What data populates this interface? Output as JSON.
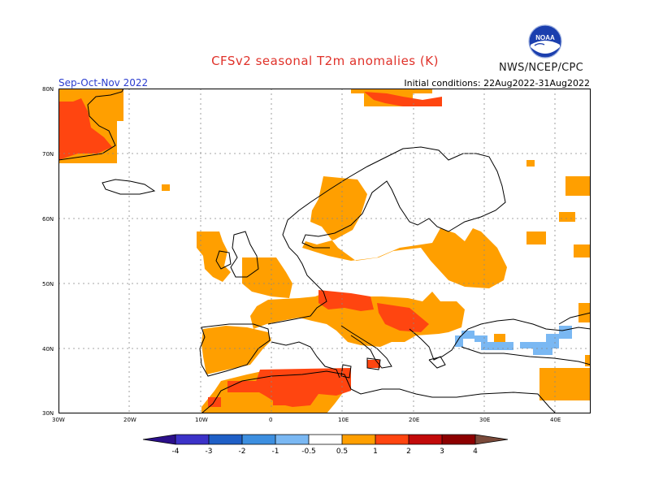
{
  "header": {
    "title": "CFSv2  seasonal  T2m  anomalies  (K)",
    "period": "Sep-Oct-Nov 2022",
    "initial_conditions": "Initial conditions: 22Aug2022-31Aug2022",
    "agency": "NWS/NCEP/CPC",
    "logo_text": "NOAA"
  },
  "map": {
    "lat_labels": [
      "80N",
      "70N",
      "60N",
      "50N",
      "40N",
      "30N"
    ],
    "lon_labels": [
      "30W",
      "20W",
      "10W",
      "0",
      "10E",
      "20E",
      "30E",
      "40E"
    ],
    "lon_range": [
      -30,
      45
    ],
    "lat_range": [
      30,
      80
    ]
  },
  "colorbar": {
    "labels": [
      "-4",
      "-3",
      "-2",
      "-1",
      "-0.5",
      "0.5",
      "1",
      "2",
      "3",
      "4"
    ],
    "colors": {
      "lt-4": "#2b0f8a",
      "-4to-3": "#3c32c8",
      "-3to-2": "#1f5fc6",
      "-2to-1": "#3d8fe0",
      "-1to-0.5": "#7ab8f3",
      "-0.5to0.5": "#ffffff",
      "0.5to1": "#ff9f00",
      "1to2": "#ff4510",
      "2to3": "#c20a0a",
      "3to4": "#8c0000",
      "4to5": "#c8a496",
      "gt5": "#7a4a3a"
    }
  }
}
